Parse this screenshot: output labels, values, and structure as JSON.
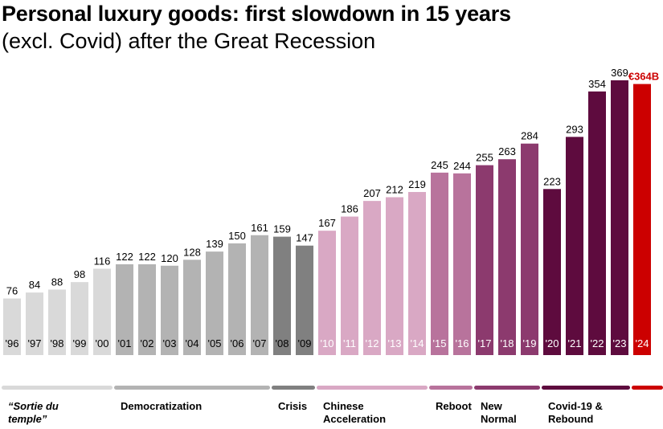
{
  "chart_data": {
    "type": "bar",
    "title": "Personal luxury goods: first slowdown in 15 years",
    "subtitle": "(excl. Covid) after the Great Recession",
    "xlabel": "",
    "ylabel": "",
    "ylim": [
      0,
      380
    ],
    "grid": false,
    "categories": [
      "'96",
      "'97",
      "'98",
      "'99",
      "'00",
      "'01",
      "'02",
      "'03",
      "'04",
      "'05",
      "'06",
      "'07",
      "'08",
      "'09",
      "'10",
      "'11",
      "'12",
      "'13",
      "'14",
      "'15",
      "'16",
      "'17",
      "'18",
      "'19",
      "'20",
      "'21",
      "'22",
      "'23",
      "'24"
    ],
    "values": [
      76,
      84,
      88,
      98,
      116,
      122,
      122,
      120,
      128,
      139,
      150,
      161,
      159,
      147,
      167,
      186,
      207,
      212,
      219,
      245,
      244,
      255,
      263,
      284,
      223,
      293,
      354,
      369,
      364
    ],
    "value_labels": [
      "76",
      "84",
      "88",
      "98",
      "116",
      "122",
      "122",
      "120",
      "128",
      "139",
      "150",
      "161",
      "159",
      "147",
      "167",
      "186",
      "207",
      "212",
      "219",
      "245",
      "244",
      "255",
      "263",
      "284",
      "223",
      "293",
      "354",
      "369",
      "€364B"
    ],
    "phases": [
      {
        "label": "“Sortie du temple”",
        "lines": [
          "“Sortie du",
          "temple”"
        ],
        "start": 0,
        "end": 4,
        "color": "#d9d9d9",
        "year_color": "#000000",
        "italic": true
      },
      {
        "label": "Democratization",
        "lines": [
          "Democratization"
        ],
        "start": 5,
        "end": 11,
        "color": "#b3b3b3",
        "year_color": "#000000"
      },
      {
        "label": "Crisis",
        "lines": [
          "Crisis"
        ],
        "start": 12,
        "end": 13,
        "color": "#808080",
        "year_color": "#000000"
      },
      {
        "label": "Chinese Acceleration",
        "lines": [
          "Chinese",
          "Acceleration"
        ],
        "start": 14,
        "end": 18,
        "color": "#d9a8c4",
        "year_color": "#ffffff"
      },
      {
        "label": "Reboot",
        "lines": [
          "Reboot"
        ],
        "start": 19,
        "end": 20,
        "color": "#b8739c",
        "year_color": "#ffffff"
      },
      {
        "label": "New Normal",
        "lines": [
          "New",
          "Normal"
        ],
        "start": 21,
        "end": 23,
        "color": "#8c3a6e",
        "year_color": "#ffffff"
      },
      {
        "label": "Covid-19 & Rebound",
        "lines": [
          "Covid-19 &",
          "Rebound"
        ],
        "start": 24,
        "end": 27,
        "color": "#5e0b3e",
        "year_color": "#ffffff"
      },
      {
        "label": "",
        "lines": [],
        "start": 28,
        "end": 28,
        "color": "#cc0000",
        "year_color": "#ffffff"
      }
    ],
    "highlight_label_color": "#cc0000"
  }
}
